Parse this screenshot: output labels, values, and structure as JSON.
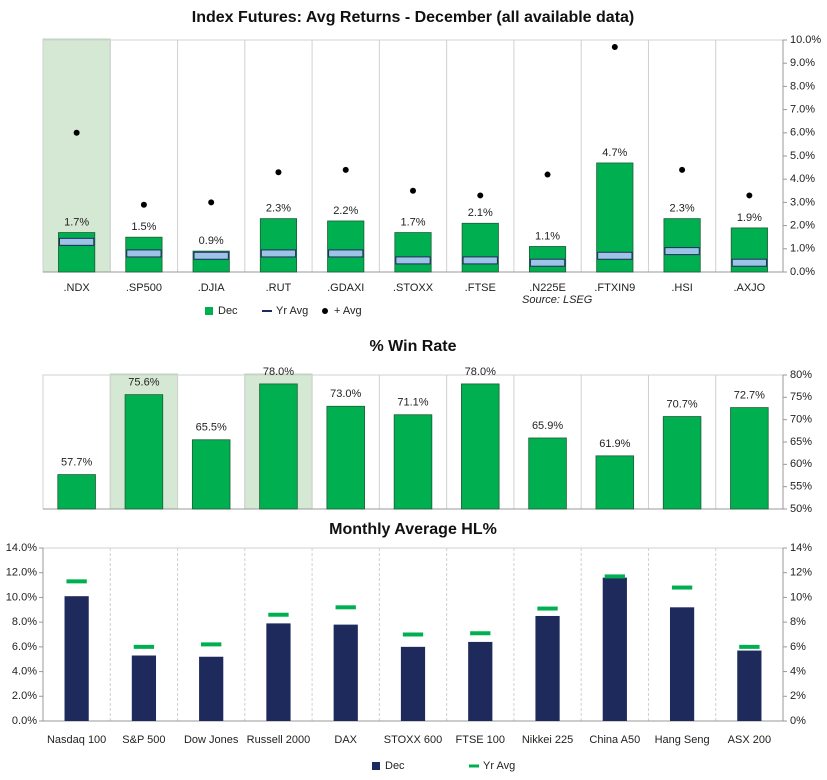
{
  "chart_data": [
    {
      "type": "bar",
      "title": "Index Futures: Avg Returns - December (all available data)",
      "categories": [
        ".NDX",
        ".SP500",
        ".DJIA",
        ".RUT",
        ".GDAXI",
        ".STOXX",
        ".FTSE",
        ".N225E",
        ".FTXIN9",
        ".HSI",
        ".AXJO"
      ],
      "series": [
        {
          "name": "Dec",
          "color": "#00b050",
          "style": "bar",
          "values": [
            1.7,
            1.5,
            0.9,
            2.3,
            2.2,
            1.7,
            2.1,
            1.1,
            4.7,
            2.3,
            1.9
          ],
          "value_labels": [
            "1.7%",
            "1.5%",
            "0.9%",
            "2.3%",
            "2.2%",
            "1.7%",
            "2.1%",
            "1.1%",
            "4.7%",
            "2.3%",
            "1.9%"
          ]
        },
        {
          "name": "Yr Avg",
          "color": "#9dc3e6",
          "style": "box",
          "values": [
            1.3,
            0.8,
            0.7,
            0.8,
            0.8,
            0.5,
            0.5,
            0.4,
            0.7,
            0.9,
            0.4
          ]
        },
        {
          "name": "+ Avg",
          "color": "#000000",
          "style": "dot",
          "values": [
            6.0,
            2.9,
            3.0,
            4.3,
            4.4,
            3.5,
            3.3,
            4.2,
            9.7,
            4.4,
            3.3
          ]
        }
      ],
      "ylim": [
        0,
        10
      ],
      "yticks": [
        {
          "value": 0,
          "label": "0.0%"
        },
        {
          "value": 1,
          "label": "1.0%"
        },
        {
          "value": 2,
          "label": "2.0%"
        },
        {
          "value": 3,
          "label": "3.0%"
        },
        {
          "value": 4,
          "label": "4.0%"
        },
        {
          "value": 5,
          "label": "5.0%"
        },
        {
          "value": 6,
          "label": "6.0%"
        },
        {
          "value": 7,
          "label": "7.0%"
        },
        {
          "value": 8,
          "label": "8.0%"
        },
        {
          "value": 9,
          "label": "9.0%"
        },
        {
          "value": 10,
          "label": "10.0%"
        }
      ],
      "yaxis_side": "right",
      "highlight": [
        0
      ],
      "annotation": "Source: LSEG"
    },
    {
      "type": "bar",
      "title": "% Win Rate",
      "values": [
        57.7,
        75.6,
        65.5,
        78.0,
        73.0,
        71.1,
        78.0,
        65.9,
        61.9,
        70.7,
        72.7
      ],
      "value_labels": [
        "57.7%",
        "75.6%",
        "65.5%",
        "78.0%",
        "73.0%",
        "71.1%",
        "78.0%",
        "65.9%",
        "61.9%",
        "70.7%",
        "72.7%"
      ],
      "color": "#00b050",
      "ylim": [
        50,
        80
      ],
      "yticks": [
        {
          "value": 50,
          "label": "50%"
        },
        {
          "value": 55,
          "label": "55%"
        },
        {
          "value": 60,
          "label": "60%"
        },
        {
          "value": 65,
          "label": "65%"
        },
        {
          "value": 70,
          "label": "70%"
        },
        {
          "value": 75,
          "label": "75%"
        },
        {
          "value": 80,
          "label": "80%"
        }
      ],
      "yaxis_side": "right",
      "highlight": [
        1,
        3
      ]
    },
    {
      "type": "bar",
      "title": "Monthly Average HL%",
      "categories": [
        "Nasdaq 100",
        "S&P 500",
        "Dow Jones",
        "Russell 2000",
        "DAX",
        "STOXX 600",
        "FTSE 100",
        "Nikkei 225",
        "China A50",
        "Hang Seng",
        "ASX 200"
      ],
      "series": [
        {
          "name": "Dec",
          "color": "#1f2a5c",
          "style": "bar",
          "values": [
            10.1,
            5.3,
            5.2,
            7.9,
            7.8,
            6.0,
            6.4,
            8.5,
            11.6,
            9.2,
            5.7
          ]
        },
        {
          "name": "Yr Avg",
          "color": "#00b050",
          "style": "dash",
          "values": [
            11.3,
            6.0,
            6.2,
            8.6,
            9.2,
            7.0,
            7.1,
            9.1,
            11.7,
            10.8,
            6.0
          ]
        }
      ],
      "ylim": [
        0,
        14
      ],
      "yticks": [
        {
          "value": 0,
          "label": "0.0%"
        },
        {
          "value": 2,
          "label": "2.0%"
        },
        {
          "value": 4,
          "label": "4.0%"
        },
        {
          "value": 6,
          "label": "6.0%"
        },
        {
          "value": 8,
          "label": "8.0%"
        },
        {
          "value": 10,
          "label": "10.0%"
        },
        {
          "value": 12,
          "label": "12.0%"
        },
        {
          "value": 14,
          "label": "14.0%"
        }
      ],
      "ytick_color": "#00b050",
      "y2lim": [
        0,
        14
      ],
      "y2ticks": [
        {
          "value": 0,
          "label": "0%"
        },
        {
          "value": 2,
          "label": "2%"
        },
        {
          "value": 4,
          "label": "4%"
        },
        {
          "value": 6,
          "label": "6%"
        },
        {
          "value": 8,
          "label": "8%"
        },
        {
          "value": 10,
          "label": "10%"
        },
        {
          "value": 12,
          "label": "12%"
        },
        {
          "value": 14,
          "label": "14%"
        }
      ],
      "separators": "dashed"
    }
  ]
}
